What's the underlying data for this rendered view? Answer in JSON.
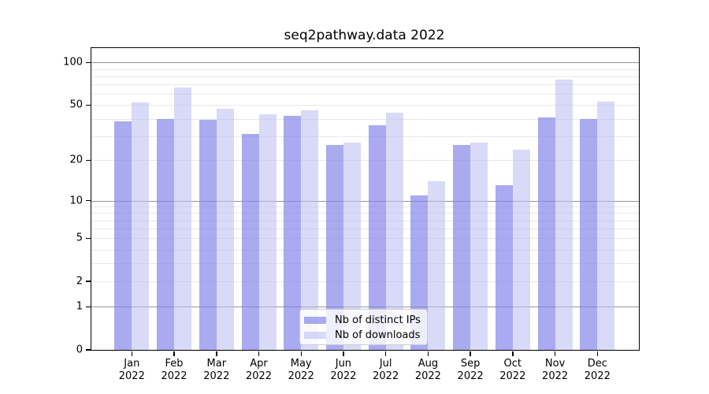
{
  "chart_data": {
    "type": "bar",
    "title": "seq2pathway.data 2022",
    "categories": [
      "Jan",
      "Feb",
      "Mar",
      "Apr",
      "May",
      "Jun",
      "Jul",
      "Aug",
      "Sep",
      "Oct",
      "Nov",
      "Dec"
    ],
    "x_tick_second_line": "2022",
    "series": [
      {
        "name": "Nb of distinct IPs",
        "values": [
          38,
          40,
          39,
          31,
          42,
          26,
          36,
          11,
          26,
          13,
          41,
          40
        ],
        "fill": "rgba(129,129,233,0.68)"
      },
      {
        "name": "Nb of downloads",
        "values": [
          52,
          67,
          47,
          43,
          46,
          27,
          44,
          14,
          27,
          24,
          76,
          53
        ],
        "fill": "rgba(186,186,242,0.55)"
      }
    ],
    "yscale": "log10(value+1)",
    "ylim": [
      0,
      126
    ],
    "y_tick_values": [
      100,
      50,
      20,
      10,
      5,
      2,
      1,
      0
    ],
    "y_major_gridlines": [
      1,
      10,
      100
    ],
    "y_minor_gridlines": [
      2,
      3,
      4,
      5,
      6,
      7,
      8,
      9,
      20,
      30,
      40,
      50,
      60,
      70,
      80,
      90
    ],
    "grid": true,
    "legend_position": "lower center",
    "colors": {
      "major_grid": "#969696",
      "minor_grid": "#e8e8e8",
      "axis": "#000000",
      "text": "#000000"
    }
  }
}
